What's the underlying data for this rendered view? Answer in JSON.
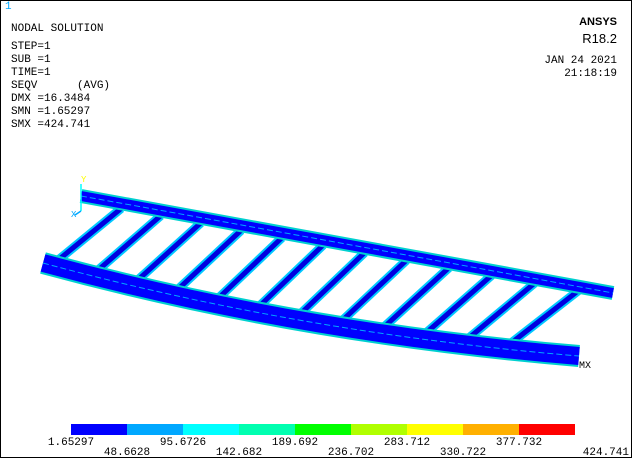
{
  "window_index": "1",
  "info": [
    "NODAL SOLUTION",
    "STEP=1",
    "SUB =1",
    "TIME=1",
    "SEQV      (AVG)",
    "DMX =16.3484",
    "SMN =1.65297",
    "SMX =424.741"
  ],
  "brand": {
    "name": "ANSYS",
    "version": "R18.2",
    "date": "JAN 24 2021",
    "time": "21:18:19"
  },
  "triad": {
    "y": "Y",
    "x": "X"
  },
  "max_marker": "MX",
  "legend": {
    "colors": [
      "#0000ff",
      "#00a8ff",
      "#00ffff",
      "#00ffb0",
      "#00ff00",
      "#b0ff00",
      "#ffff00",
      "#ffb000",
      "#ff0000"
    ],
    "labels": [
      "1.65297",
      "48.6628",
      "95.6726",
      "142.682",
      "189.692",
      "236.702",
      "283.712",
      "330.722",
      "377.732",
      "424.741"
    ]
  }
}
